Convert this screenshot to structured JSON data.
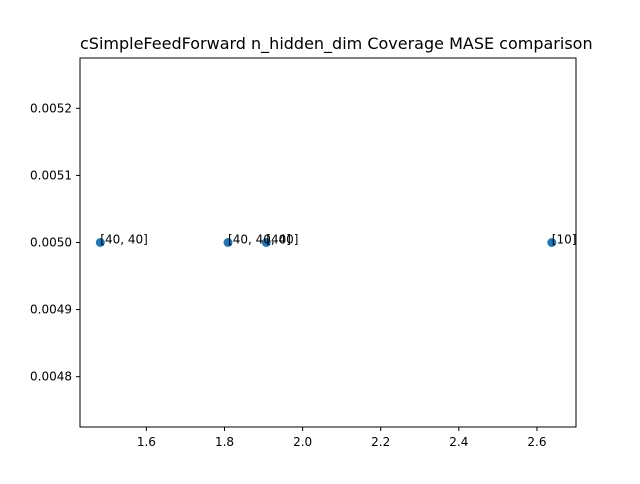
{
  "chart_data": {
    "type": "scatter",
    "title": "cSimpleFeedForward n_hidden_dim Coverage MASE comparison",
    "xlabel": "",
    "ylabel": "",
    "xlim": [
      1.43,
      2.7
    ],
    "ylim": [
      0.004725,
      0.005275
    ],
    "x_ticks": [
      1.6,
      1.8,
      2.0,
      2.2,
      2.4,
      2.6
    ],
    "x_tick_labels": [
      "1.6",
      "1.8",
      "2.0",
      "2.2",
      "2.4",
      "2.6"
    ],
    "y_ticks": [
      0.0048,
      0.0049,
      0.005,
      0.0051,
      0.0052
    ],
    "y_tick_labels": [
      "0.0048",
      "0.0049",
      "0.0050",
      "0.0051",
      "0.0052"
    ],
    "grid": false,
    "marker_color": "#1f77b4",
    "points": [
      {
        "x": 1.482,
        "y": 0.005,
        "label": "[40, 40]"
      },
      {
        "x": 1.809,
        "y": 0.005,
        "label": "[40, 40, 40]"
      },
      {
        "x": 1.907,
        "y": 0.005,
        "label": "[40]"
      },
      {
        "x": 2.638,
        "y": 0.005,
        "label": "[10]"
      }
    ]
  }
}
